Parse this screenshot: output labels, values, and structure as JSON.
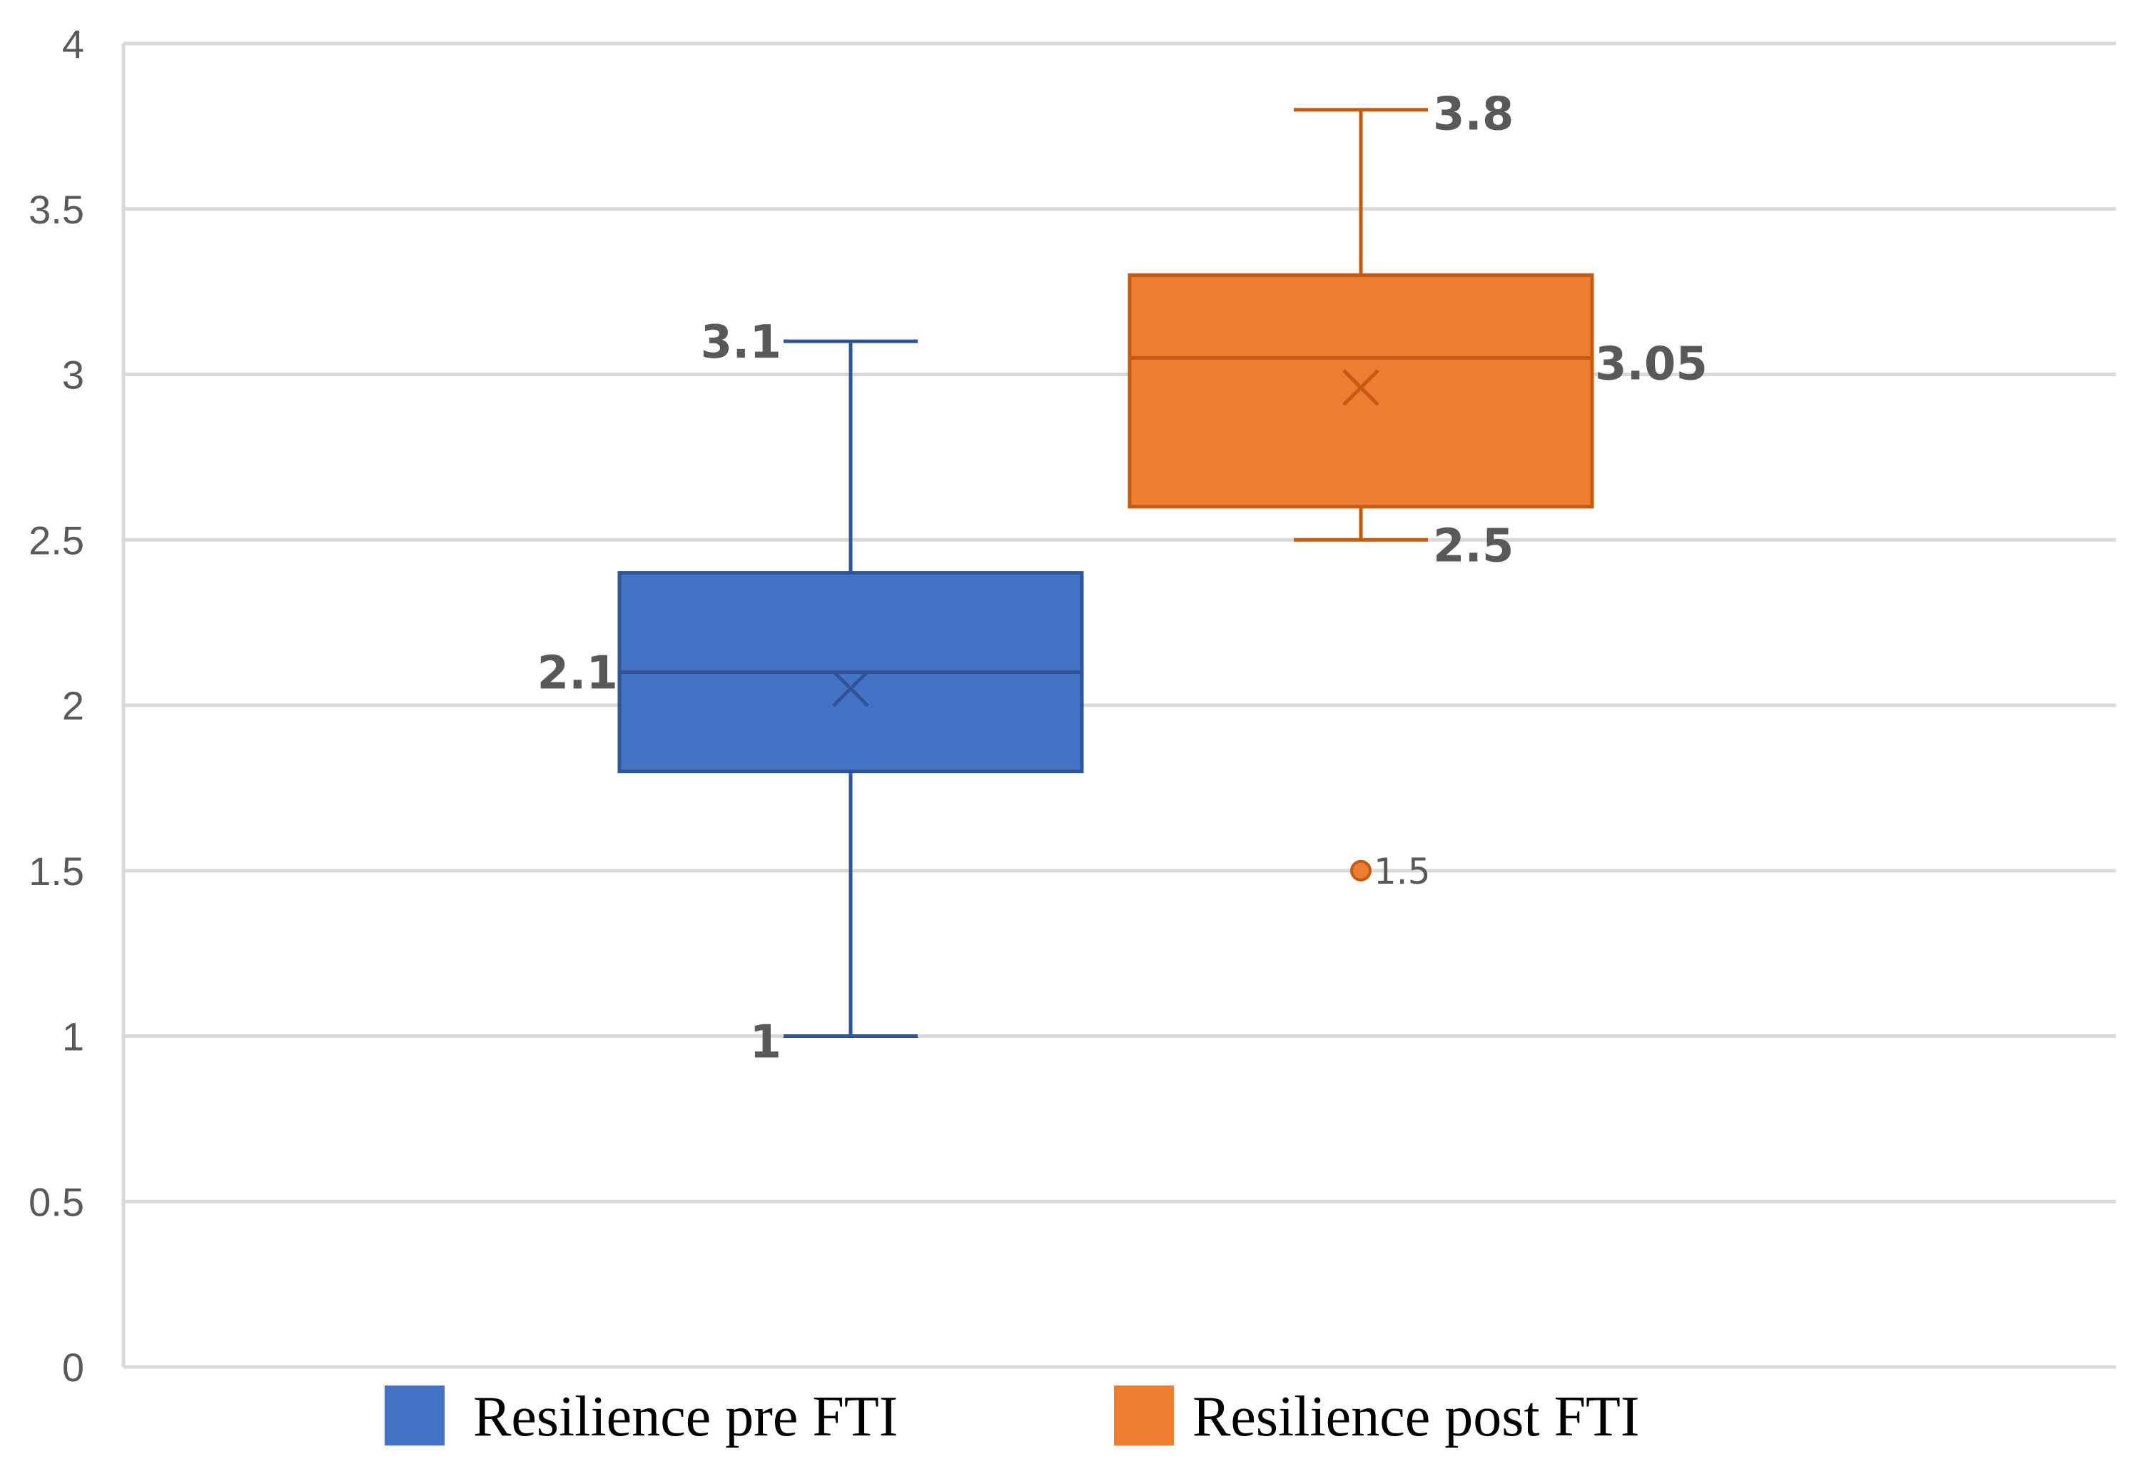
{
  "chart_data": {
    "type": "boxplot",
    "title": "",
    "xlabel": "",
    "ylabel": "",
    "ylim": [
      0,
      4
    ],
    "yticks": [
      {
        "value": 0,
        "label": "0"
      },
      {
        "value": 0.5,
        "label": "0.5"
      },
      {
        "value": 1,
        "label": "1"
      },
      {
        "value": 1.5,
        "label": "1.5"
      },
      {
        "value": 2,
        "label": "2"
      },
      {
        "value": 2.5,
        "label": "2.5"
      },
      {
        "value": 3,
        "label": "3"
      },
      {
        "value": 3.5,
        "label": "3.5"
      },
      {
        "value": 4,
        "label": "4"
      }
    ],
    "grid": true,
    "legend_position": "bottom",
    "series": [
      {
        "name": "Resilience pre FTI",
        "color": "#4472C4",
        "stroke": "#2F5597",
        "min": 1,
        "q1": 1.8,
        "median": 2.1,
        "q3": 2.4,
        "max": 3.1,
        "mean": 2.05,
        "outliers": [],
        "labels": {
          "max": "3.1",
          "median": "2.1",
          "min": "1"
        }
      },
      {
        "name": "Resilience post FTI",
        "color": "#ED7D31",
        "stroke": "#C55A11",
        "min": 2.5,
        "q1": 2.6,
        "median": 3.05,
        "q3": 3.3,
        "max": 3.8,
        "mean": 2.96,
        "outliers": [
          {
            "value": 1.5,
            "label": "1.5"
          }
        ],
        "labels": {
          "max": "3.8",
          "median": "3.05",
          "min": "2.5"
        }
      }
    ]
  }
}
